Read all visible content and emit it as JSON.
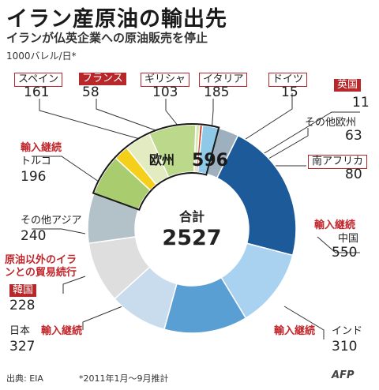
{
  "title": "イラン産原油の輸出先",
  "subtitle": "イランが仏英企業への原油販売を停止",
  "unit": "1000バレル/日*",
  "total_label": "合計",
  "total_value": "2527",
  "europe_label": "欧州",
  "europe_value": "596",
  "import_continue": "輸入継続",
  "trade_note_1": "原油以外のイラ",
  "trade_note_2": "ンとの貿易続行",
  "source": "出典: EIA",
  "period": "*2011年1月～9月推計",
  "agency": "AFP",
  "colors": {
    "accent": "#b8282a",
    "europe_outline": "#1a1a1a"
  },
  "chart_data": {
    "type": "pie",
    "title": "イラン産原油の輸出先",
    "subtitle": "イランが仏英企業への原油販売を停止",
    "unit": "1000バレル/日*",
    "total": 2527,
    "europe_total": 596,
    "slices": [
      {
        "name": "スペイン",
        "value": 161,
        "color": "#a8cc6e",
        "group": "欧州"
      },
      {
        "name": "フランス",
        "value": 58,
        "color": "#f5d01a",
        "group": "欧州"
      },
      {
        "name": "ギリシャ",
        "value": 103,
        "color": "#e2ecc0",
        "group": "欧州"
      },
      {
        "name": "イタリア",
        "value": 185,
        "color": "#bcd88a",
        "group": "欧州"
      },
      {
        "name": "ドイツ",
        "value": 15,
        "color": "#d9e8b8",
        "group": "欧州"
      },
      {
        "name": "英国",
        "value": 11,
        "color": "#d23a1c",
        "group": "欧州"
      },
      {
        "name": "その他欧州",
        "value": 63,
        "color": "#8fc9e8",
        "group": "欧州"
      },
      {
        "name": "南アフリカ",
        "value": 80,
        "color": "#9eb0bd"
      },
      {
        "name": "中国",
        "value": 550,
        "color": "#1d5a9a"
      },
      {
        "name": "インド",
        "value": 310,
        "color": "#a9d2f0"
      },
      {
        "name": "日本",
        "value": 327,
        "color": "#5a9fd4"
      },
      {
        "name": "韓国",
        "value": 228,
        "color": "#c9dced"
      },
      {
        "name": "その他アジア",
        "value": 240,
        "color": "#dedede"
      },
      {
        "name": "トルコ",
        "value": 196,
        "color": "#b3c2c9"
      }
    ]
  }
}
